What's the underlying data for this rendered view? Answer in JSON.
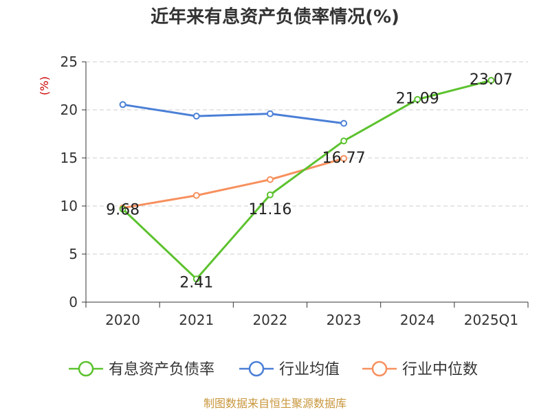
{
  "chart_data": {
    "type": "line",
    "title": "近年来有息资产负债率情况(%)",
    "ylabel": "(%)",
    "categories": [
      "2020",
      "2021",
      "2022",
      "2023",
      "2024",
      "2025Q1"
    ],
    "ylim": [
      0,
      25
    ],
    "yticks": [
      0,
      5,
      10,
      15,
      20,
      25
    ],
    "grid": true,
    "legend_position": "bottom",
    "series": [
      {
        "name": "有息资产负债率",
        "color": "#5cc22e",
        "values": [
          9.68,
          2.41,
          11.16,
          16.77,
          21.09,
          23.07
        ],
        "labels": [
          "9.68",
          "2.41",
          "11.16",
          "16.77",
          "21.09",
          "23.07"
        ]
      },
      {
        "name": "行业均值",
        "color": "#4a7fd6",
        "values": [
          20.55,
          19.35,
          19.6,
          18.6,
          null,
          null
        ]
      },
      {
        "name": "行业中位数",
        "color": "#f7905e",
        "values": [
          9.8,
          11.1,
          12.75,
          14.95,
          null,
          null
        ]
      }
    ],
    "source": "制图数据来自恒生聚源数据库"
  }
}
